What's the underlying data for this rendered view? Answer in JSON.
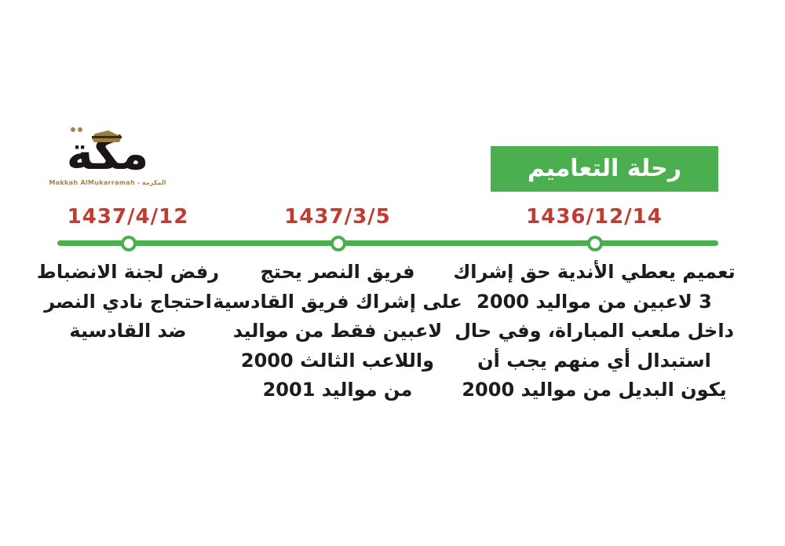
{
  "colors": {
    "accent_green": "#4bae4f",
    "date_red": "#c23b31",
    "text_dark": "#1d1b1b",
    "logo_gold": "#a5834e"
  },
  "logo": {
    "wordmark": "مكة",
    "subtitle": "المكرمة - Makkah AlMukarramah",
    "kaaba_icon": "kaaba-icon"
  },
  "header": {
    "title": "رحلة التعاميم"
  },
  "timeline": {
    "events": [
      {
        "date": "1436/12/14",
        "lines": [
          "تعميم يعطي الأندية حق إشراك",
          "3 لاعبين من مواليد 2000",
          "داخل ملعب المباراة، وفي حال",
          "استبدال أي منهم يجب أن",
          "يكون البديل من مواليد 2000"
        ]
      },
      {
        "date": "1437/3/5",
        "lines": [
          "فريق النصر يحتج",
          "على إشراك فريق القادسية",
          "لاعبين فقط من مواليد",
          "واللاعب الثالث 2000",
          "من مواليد 2001"
        ]
      },
      {
        "date": "1437/4/12",
        "lines": [
          "رفض لجنة الانضباط",
          "احتجاج نادي النصر",
          "ضد القادسية"
        ]
      }
    ]
  }
}
